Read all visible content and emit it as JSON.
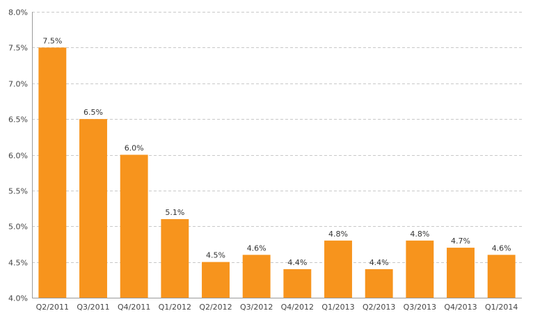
{
  "chart_data": {
    "type": "bar",
    "categories": [
      "Q2/2011",
      "Q3/2011",
      "Q4/2011",
      "Q1/2012",
      "Q2/2012",
      "Q3/2012",
      "Q4/2012",
      "Q1/2013",
      "Q2/2013",
      "Q3/2013",
      "Q4/2013",
      "Q1/2014"
    ],
    "values": [
      7.5,
      6.5,
      6.0,
      5.1,
      4.5,
      4.6,
      4.4,
      4.8,
      4.4,
      4.8,
      4.7,
      4.6
    ],
    "data_labels": [
      "7.5%",
      "6.5%",
      "6.0%",
      "5.1%",
      "4.5%",
      "4.6%",
      "4.4%",
      "4.8%",
      "4.4%",
      "4.8%",
      "4.7%",
      "4.6%"
    ],
    "y_ticks": [
      4.0,
      4.5,
      5.0,
      5.5,
      6.0,
      6.5,
      7.0,
      7.5,
      8.0
    ],
    "y_tick_labels": [
      "4.0%",
      "4.5%",
      "5.0%",
      "5.5%",
      "6.0%",
      "6.5%",
      "7.0%",
      "7.5%",
      "8.0%"
    ],
    "ylim": [
      4.0,
      8.0
    ],
    "grid": true,
    "legend": false,
    "bar_color": "#f7941d",
    "grid_color": "#c8c8c8"
  }
}
